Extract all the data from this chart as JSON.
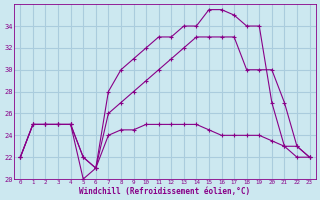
{
  "background_color": "#cce8f0",
  "grid_color": "#aaccdd",
  "line_color": "#880088",
  "xlabel": "Windchill (Refroidissement éolien,°C)",
  "xlim": [
    -0.5,
    23.5
  ],
  "ylim": [
    20,
    36
  ],
  "yticks": [
    20,
    22,
    24,
    26,
    28,
    30,
    32,
    34
  ],
  "xticks": [
    0,
    1,
    2,
    3,
    4,
    5,
    6,
    7,
    8,
    9,
    10,
    11,
    12,
    13,
    14,
    15,
    16,
    17,
    18,
    19,
    20,
    21,
    22,
    23
  ],
  "series1_x": [
    0,
    1,
    2,
    3,
    4,
    5,
    6,
    7,
    8,
    9,
    10,
    11,
    12,
    13,
    14,
    15,
    16,
    17,
    18,
    19,
    20,
    21,
    22,
    23
  ],
  "series1_y": [
    22,
    25,
    25,
    25,
    25,
    22,
    21,
    24,
    24.5,
    24.5,
    25,
    25,
    25,
    25,
    25,
    24.5,
    24,
    24,
    24,
    24,
    23.5,
    23,
    23,
    22
  ],
  "series2_x": [
    0,
    1,
    2,
    3,
    4,
    5,
    6,
    7,
    8,
    9,
    10,
    11,
    12,
    13,
    14,
    15,
    16,
    17,
    18,
    19,
    20,
    21,
    22,
    23
  ],
  "series2_y": [
    22,
    25,
    25,
    25,
    25,
    22,
    21,
    26,
    27,
    28,
    29,
    30,
    31,
    32,
    33,
    33,
    33,
    33,
    30,
    30,
    30,
    27,
    23,
    22
  ],
  "series3_x": [
    0,
    1,
    2,
    3,
    4,
    5,
    6,
    7,
    8,
    9,
    10,
    11,
    12,
    13,
    14,
    15,
    16,
    17,
    18,
    19,
    20,
    21,
    22,
    23
  ],
  "series3_y": [
    22,
    25,
    25,
    25,
    25,
    20,
    21,
    28,
    30,
    31,
    32,
    33,
    33,
    34,
    34,
    35.5,
    35.5,
    35,
    34,
    34,
    27,
    23,
    22,
    22
  ]
}
